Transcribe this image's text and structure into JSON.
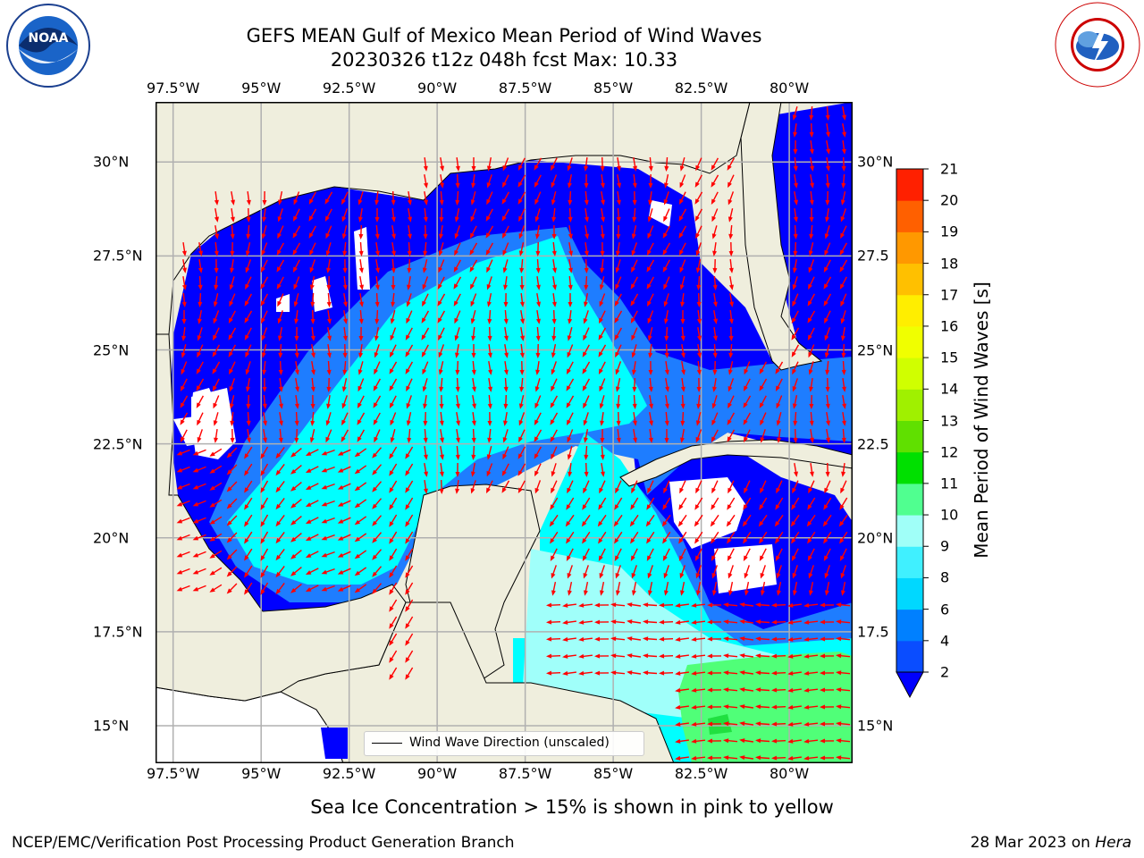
{
  "title_line1": "GEFS MEAN Gulf of Mexico Mean Period of Wind Waves",
  "title_line2": "20230326 t12z 048h fcst   Max: 10.33",
  "lon_labels": [
    "97.5°W",
    "95°W",
    "92.5°W",
    "90°W",
    "87.5°W",
    "85°W",
    "82.5°W",
    "80°W"
  ],
  "lat_labels_left": [
    "30°N",
    "27.5°N",
    "25°N",
    "22.5°N",
    "20°N",
    "17.5°N",
    "15°N"
  ],
  "lat_labels_right": [
    "30°N",
    "27.5",
    "25°N",
    "22.5",
    "20°N",
    "17.5",
    "15°N"
  ],
  "map_extent": {
    "lon_min": -98,
    "lon_max": -78.2,
    "lat_min": 14.0,
    "lat_max": 31.6
  },
  "legend_label": "Wind Wave Direction (unscaled)",
  "colorbar": {
    "label": "Mean Period of Wind Waves [s]",
    "tick_labels": [
      "2",
      "4",
      "6",
      "8",
      "9",
      "10",
      "11",
      "12",
      "13",
      "14",
      "15",
      "16",
      "17",
      "18",
      "19",
      "20",
      "21"
    ],
    "colors": [
      "#0a4dff",
      "#0080ff",
      "#00d8ff",
      "#40f0ff",
      "#a0fff8",
      "#50ff90",
      "#00e000",
      "#60e000",
      "#a0f000",
      "#d0ff00",
      "#f0ff00",
      "#ffee00",
      "#ffc000",
      "#ff9800",
      "#ff6000",
      "#ff2000",
      "#ff0000"
    ],
    "extend_color": "#0000ff"
  },
  "subnote": "Sea Ice Concentration > 15% is shown in pink to yellow",
  "footer_left": "NCEP/EMC/Verification Post Processing Product Generation Branch",
  "footer_right_date": "28 Mar 2023 on ",
  "footer_right_machine": "Hera",
  "logo_noaa": "NOAA",
  "colors": {
    "land": "#efeedd",
    "deep_blue": "#0000ff",
    "mid_blue": "#1e7dff",
    "cyan": "#00ffff",
    "pale_cyan": "#a0fffa",
    "green": "#50ff78",
    "arrow": "#ff0000",
    "grid": "#b0b0b0"
  }
}
